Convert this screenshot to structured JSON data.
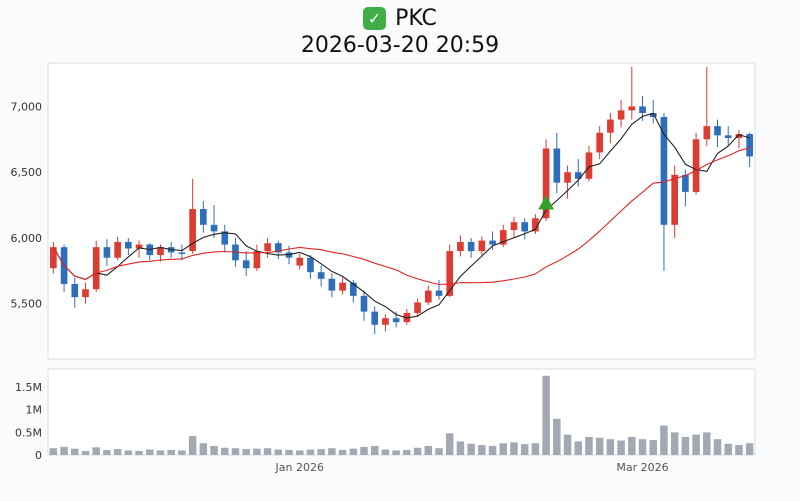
{
  "header": {
    "symbol": "PKC",
    "datetime": "2026-03-20 20:59",
    "checkbox_icon": "green-checkbox"
  },
  "chart_data": {
    "type": "candlestick",
    "title": "PKC",
    "subtitle": "2026-03-20 20:59",
    "legend": "none",
    "grid": "off",
    "price_axis": {
      "ticks": [
        5500,
        6000,
        6500,
        7000
      ],
      "tick_labels": [
        "5,500",
        "6,000",
        "6,500",
        "7,000"
      ],
      "range": [
        5080,
        7330
      ]
    },
    "volume_axis": {
      "ticks": [
        0,
        500000,
        1000000,
        1500000
      ],
      "tick_labels": [
        "0",
        "0.5M",
        "1M",
        "1.5M"
      ],
      "range": [
        0,
        1900000
      ]
    },
    "x_ticks": [
      {
        "index": 23,
        "label": "Jan 2026"
      },
      {
        "index": 55,
        "label": "Mar 2026"
      }
    ],
    "colors": {
      "up": "#dd3c32",
      "down": "#2f6eba",
      "volume": "#a3a9b3",
      "ma_fast": "#222222",
      "ma_slow": "#e02424",
      "marker": "#33a02c"
    },
    "moving_averages": [
      {
        "name": "MA5",
        "period": 5,
        "color_key": "ma_fast"
      },
      {
        "name": "MA20",
        "period": 20,
        "color_key": "ma_slow"
      }
    ],
    "marker": {
      "index": 46,
      "price": 6270,
      "shape": "triangle-up"
    },
    "candles": [
      [
        5770,
        5970,
        5730,
        5930,
        150000
      ],
      [
        5930,
        5950,
        5590,
        5650,
        180000
      ],
      [
        5650,
        5700,
        5470,
        5550,
        140000
      ],
      [
        5550,
        5660,
        5500,
        5610,
        90000
      ],
      [
        5610,
        5980,
        5590,
        5930,
        170000
      ],
      [
        5930,
        5990,
        5790,
        5850,
        110000
      ],
      [
        5850,
        6010,
        5830,
        5970,
        130000
      ],
      [
        5970,
        6000,
        5870,
        5920,
        100000
      ],
      [
        5920,
        5980,
        5850,
        5950,
        90000
      ],
      [
        5950,
        5960,
        5830,
        5870,
        120000
      ],
      [
        5870,
        5950,
        5820,
        5930,
        100000
      ],
      [
        5930,
        5970,
        5850,
        5890,
        110000
      ],
      [
        5890,
        5950,
        5830,
        5880,
        100000
      ],
      [
        5900,
        6450,
        5880,
        6220,
        420000
      ],
      [
        6220,
        6280,
        6040,
        6100,
        260000
      ],
      [
        6100,
        6250,
        6000,
        6050,
        200000
      ],
      [
        6050,
        6100,
        5890,
        5950,
        160000
      ],
      [
        5950,
        6000,
        5780,
        5830,
        150000
      ],
      [
        5830,
        5900,
        5710,
        5770,
        130000
      ],
      [
        5770,
        5950,
        5750,
        5900,
        140000
      ],
      [
        5900,
        6000,
        5850,
        5960,
        150000
      ],
      [
        5960,
        5980,
        5840,
        5890,
        120000
      ],
      [
        5890,
        5940,
        5800,
        5850,
        110000
      ],
      [
        5790,
        5880,
        5760,
        5850,
        100000
      ],
      [
        5850,
        5870,
        5690,
        5740,
        120000
      ],
      [
        5740,
        5790,
        5630,
        5690,
        130000
      ],
      [
        5690,
        5730,
        5550,
        5600,
        150000
      ],
      [
        5600,
        5700,
        5570,
        5660,
        110000
      ],
      [
        5660,
        5680,
        5510,
        5560,
        140000
      ],
      [
        5560,
        5600,
        5370,
        5440,
        180000
      ],
      [
        5440,
        5480,
        5270,
        5340,
        200000
      ],
      [
        5340,
        5420,
        5290,
        5390,
        120000
      ],
      [
        5390,
        5440,
        5320,
        5360,
        100000
      ],
      [
        5360,
        5460,
        5340,
        5430,
        110000
      ],
      [
        5430,
        5540,
        5400,
        5510,
        160000
      ],
      [
        5510,
        5640,
        5490,
        5600,
        200000
      ],
      [
        5600,
        5680,
        5530,
        5560,
        150000
      ],
      [
        5560,
        5950,
        5550,
        5900,
        480000
      ],
      [
        5900,
        6020,
        5860,
        5970,
        300000
      ],
      [
        5970,
        6000,
        5850,
        5900,
        250000
      ],
      [
        5900,
        6010,
        5870,
        5980,
        220000
      ],
      [
        5980,
        6050,
        5910,
        5950,
        200000
      ],
      [
        5950,
        6100,
        5930,
        6060,
        260000
      ],
      [
        6060,
        6160,
        6010,
        6120,
        280000
      ],
      [
        6120,
        6150,
        5990,
        6050,
        240000
      ],
      [
        6050,
        6180,
        6030,
        6150,
        260000
      ],
      [
        6150,
        6750,
        6130,
        6680,
        1750000
      ],
      [
        6680,
        6800,
        6340,
        6420,
        800000
      ],
      [
        6420,
        6550,
        6300,
        6500,
        450000
      ],
      [
        6500,
        6600,
        6390,
        6450,
        300000
      ],
      [
        6450,
        6700,
        6430,
        6650,
        400000
      ],
      [
        6650,
        6850,
        6600,
        6800,
        380000
      ],
      [
        6800,
        6950,
        6720,
        6900,
        350000
      ],
      [
        6900,
        7050,
        6840,
        6970,
        320000
      ],
      [
        6970,
        7300,
        6900,
        7000,
        400000
      ],
      [
        7000,
        7080,
        6890,
        6950,
        350000
      ],
      [
        6950,
        7050,
        6870,
        6920,
        330000
      ],
      [
        6920,
        6950,
        5750,
        6100,
        650000
      ],
      [
        6100,
        6550,
        6000,
        6480,
        500000
      ],
      [
        6480,
        6520,
        6240,
        6350,
        400000
      ],
      [
        6350,
        6800,
        6330,
        6750,
        450000
      ],
      [
        6750,
        7300,
        6700,
        6850,
        500000
      ],
      [
        6850,
        6900,
        6690,
        6780,
        350000
      ],
      [
        6780,
        6850,
        6700,
        6760,
        250000
      ],
      [
        6760,
        6820,
        6680,
        6790,
        220000
      ],
      [
        6790,
        6800,
        6540,
        6620,
        260000
      ]
    ]
  }
}
